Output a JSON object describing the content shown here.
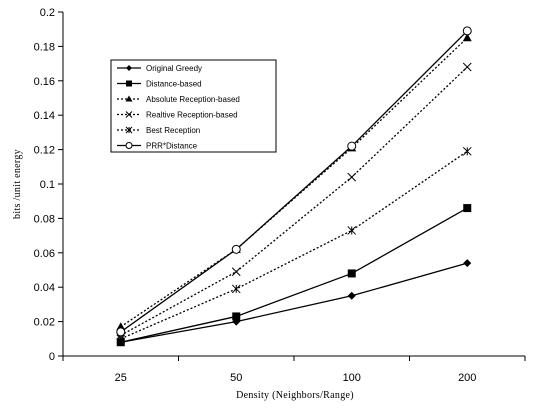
{
  "chart_data": {
    "type": "line",
    "title": "",
    "xlabel": "Density (Neighbors/Range)",
    "ylabel": "bits /unit energy",
    "categories": [
      "25",
      "50",
      "100",
      "200"
    ],
    "ylim": [
      0,
      0.2
    ],
    "yticks": [
      0,
      0.02,
      0.04,
      0.06,
      0.08,
      0.1,
      0.12,
      0.14,
      0.16,
      0.18,
      0.2
    ],
    "ytick_labels": [
      "0",
      "0.02",
      "0.04",
      "0.06",
      "0.08",
      "0.1",
      "0.12",
      "0.14",
      "0.16",
      "0.18",
      "0.2"
    ],
    "grid": false,
    "legend_position": "top-left",
    "series": [
      {
        "name": "Original Greedy",
        "marker": "diamond",
        "dash": "solid",
        "values": [
          0.008,
          0.02,
          0.035,
          0.054
        ]
      },
      {
        "name": "Distance-based",
        "marker": "square",
        "dash": "solid",
        "values": [
          0.008,
          0.023,
          0.048,
          0.086
        ]
      },
      {
        "name": "Absolute Reception-based",
        "marker": "triangle",
        "dash": "dotted",
        "values": [
          0.017,
          0.062,
          0.121,
          0.185
        ]
      },
      {
        "name": "Realtive Reception-based",
        "marker": "x",
        "dash": "dotted",
        "values": [
          0.012,
          0.049,
          0.104,
          0.168
        ]
      },
      {
        "name": "Best Reception",
        "marker": "star",
        "dash": "dotted",
        "values": [
          0.01,
          0.039,
          0.073,
          0.119
        ]
      },
      {
        "name": "PRR*Distance",
        "marker": "circle",
        "dash": "solid",
        "values": [
          0.014,
          0.062,
          0.122,
          0.189
        ]
      }
    ]
  }
}
